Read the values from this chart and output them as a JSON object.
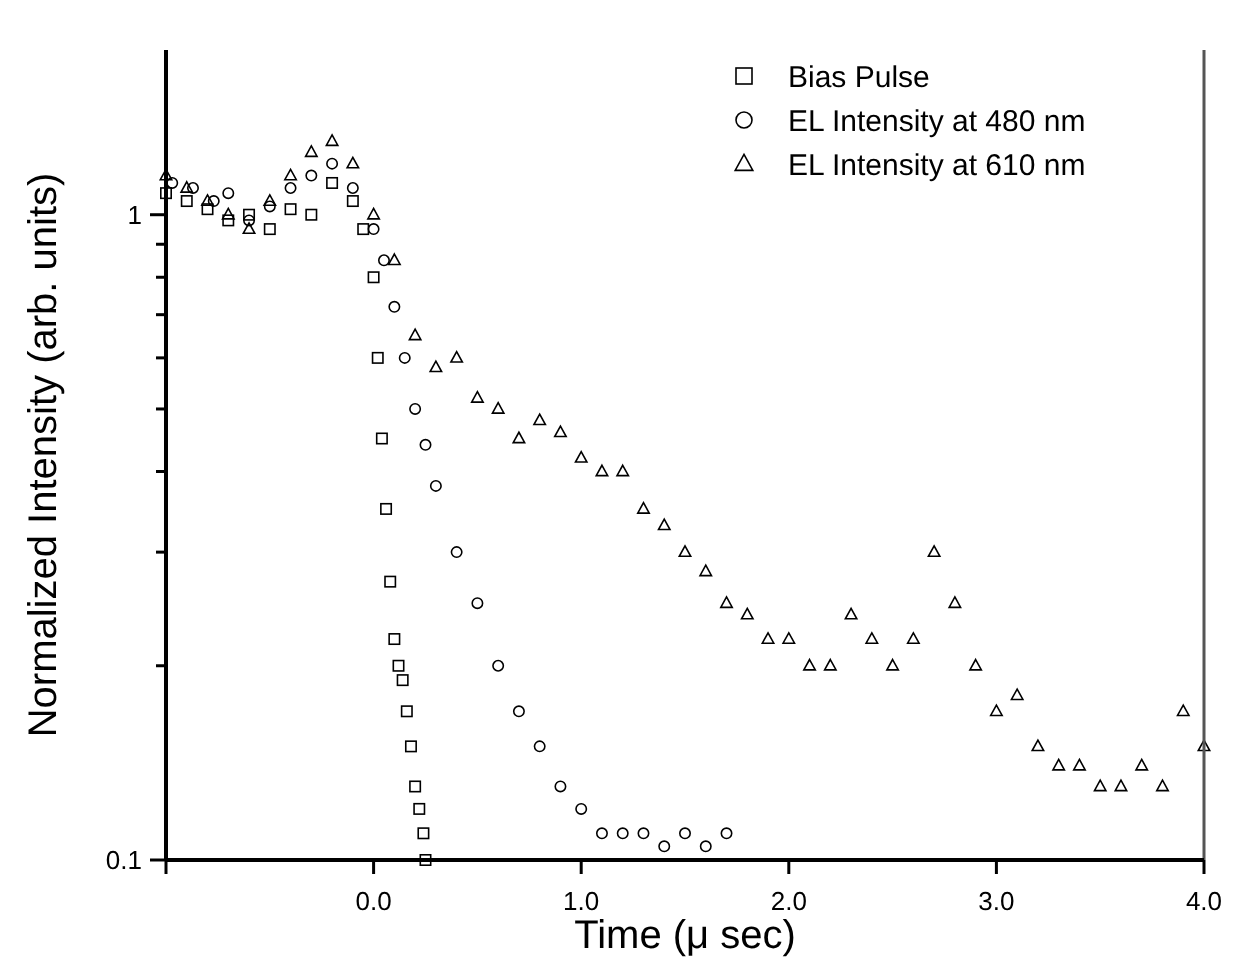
{
  "chart_data": {
    "type": "scatter",
    "xlabel": "Time (μ sec)",
    "ylabel": "Normalized Intensity (arb. units)",
    "log": "y",
    "xlim": [
      -1,
      4
    ],
    "xticks": [
      {
        "value": -1,
        "label": null
      },
      {
        "value": 0,
        "label": "0.0"
      },
      {
        "value": 1,
        "label": "1.0"
      },
      {
        "value": 2,
        "label": "2.0"
      },
      {
        "value": 3,
        "label": "3.0"
      },
      {
        "value": 4,
        "label": "4.0"
      }
    ],
    "ylim": [
      0.1,
      1.8
    ],
    "yticks": [
      0.1,
      {
        "value": 0.2,
        "label": null
      },
      {
        "value": 0.3,
        "label": null
      },
      {
        "value": 0.4,
        "label": null
      },
      {
        "value": 0.5,
        "label": null
      },
      {
        "value": 0.6,
        "label": null
      },
      {
        "value": 0.7,
        "label": null
      },
      {
        "value": 0.8,
        "label": null
      },
      {
        "value": 0.9,
        "label": null
      },
      1
    ],
    "legend": "top right",
    "grid": false,
    "series": [
      {
        "name": "Bias Pulse",
        "color": "#000000",
        "marker": "square",
        "x": [
          -1,
          -0.9,
          -0.8,
          -0.7,
          -0.6,
          -0.5,
          -0.4,
          -0.3,
          -0.2,
          -0.1,
          -0.05,
          0,
          0.02,
          0.04,
          0.06,
          0.08,
          0.1,
          0.12,
          0.14,
          0.16,
          0.18,
          0.2,
          0.22,
          0.24,
          0.25
        ],
        "values": [
          1.08,
          1.05,
          1.02,
          0.98,
          1.0,
          0.95,
          1.02,
          1.0,
          1.12,
          1.05,
          0.95,
          0.8,
          0.6,
          0.45,
          0.35,
          0.27,
          0.22,
          0.2,
          0.19,
          0.17,
          0.15,
          0.13,
          0.12,
          0.11,
          0.1
        ]
      },
      {
        "name": "EL Intensity at 480 nm",
        "color": "#000000",
        "marker": "circle",
        "x": [
          -0.97,
          -0.87,
          -0.77,
          -0.7,
          -0.6,
          -0.5,
          -0.4,
          -0.3,
          -0.2,
          -0.1,
          0,
          0.05,
          0.1,
          0.15,
          0.2,
          0.25,
          0.3,
          0.4,
          0.5,
          0.6,
          0.7,
          0.8,
          0.9,
          1.0,
          1.1,
          1.2,
          1.3,
          1.4,
          1.5,
          1.6,
          1.7
        ],
        "values": [
          1.12,
          1.1,
          1.05,
          1.08,
          0.98,
          1.03,
          1.1,
          1.15,
          1.2,
          1.1,
          0.95,
          0.85,
          0.72,
          0.6,
          0.5,
          0.44,
          0.38,
          0.3,
          0.25,
          0.2,
          0.17,
          0.15,
          0.13,
          0.12,
          0.11,
          0.11,
          0.11,
          0.105,
          0.11,
          0.105,
          0.11
        ]
      },
      {
        "name": "EL Intensity at 610 nm",
        "color": "#000000",
        "marker": "triangle",
        "x": [
          -1,
          -0.9,
          -0.8,
          -0.7,
          -0.6,
          -0.5,
          -0.4,
          -0.3,
          -0.2,
          -0.1,
          0,
          0.1,
          0.2,
          0.3,
          0.4,
          0.5,
          0.6,
          0.7,
          0.8,
          0.9,
          1.0,
          1.1,
          1.2,
          1.3,
          1.4,
          1.5,
          1.6,
          1.7,
          1.8,
          1.9,
          2.0,
          2.1,
          2.2,
          2.3,
          2.4,
          2.5,
          2.6,
          2.7,
          2.8,
          2.9,
          3.0,
          3.1,
          3.2,
          3.3,
          3.4,
          3.5,
          3.6,
          3.7,
          3.8,
          3.9,
          4.0
        ],
        "values": [
          1.15,
          1.1,
          1.05,
          1.0,
          0.95,
          1.05,
          1.15,
          1.25,
          1.3,
          1.2,
          1.0,
          0.85,
          0.65,
          0.58,
          0.6,
          0.52,
          0.5,
          0.45,
          0.48,
          0.46,
          0.42,
          0.4,
          0.4,
          0.35,
          0.33,
          0.3,
          0.28,
          0.25,
          0.24,
          0.22,
          0.22,
          0.2,
          0.2,
          0.24,
          0.22,
          0.2,
          0.22,
          0.3,
          0.25,
          0.2,
          0.17,
          0.18,
          0.15,
          0.14,
          0.14,
          0.13,
          0.13,
          0.14,
          0.13,
          0.17,
          0.15
        ]
      }
    ]
  }
}
